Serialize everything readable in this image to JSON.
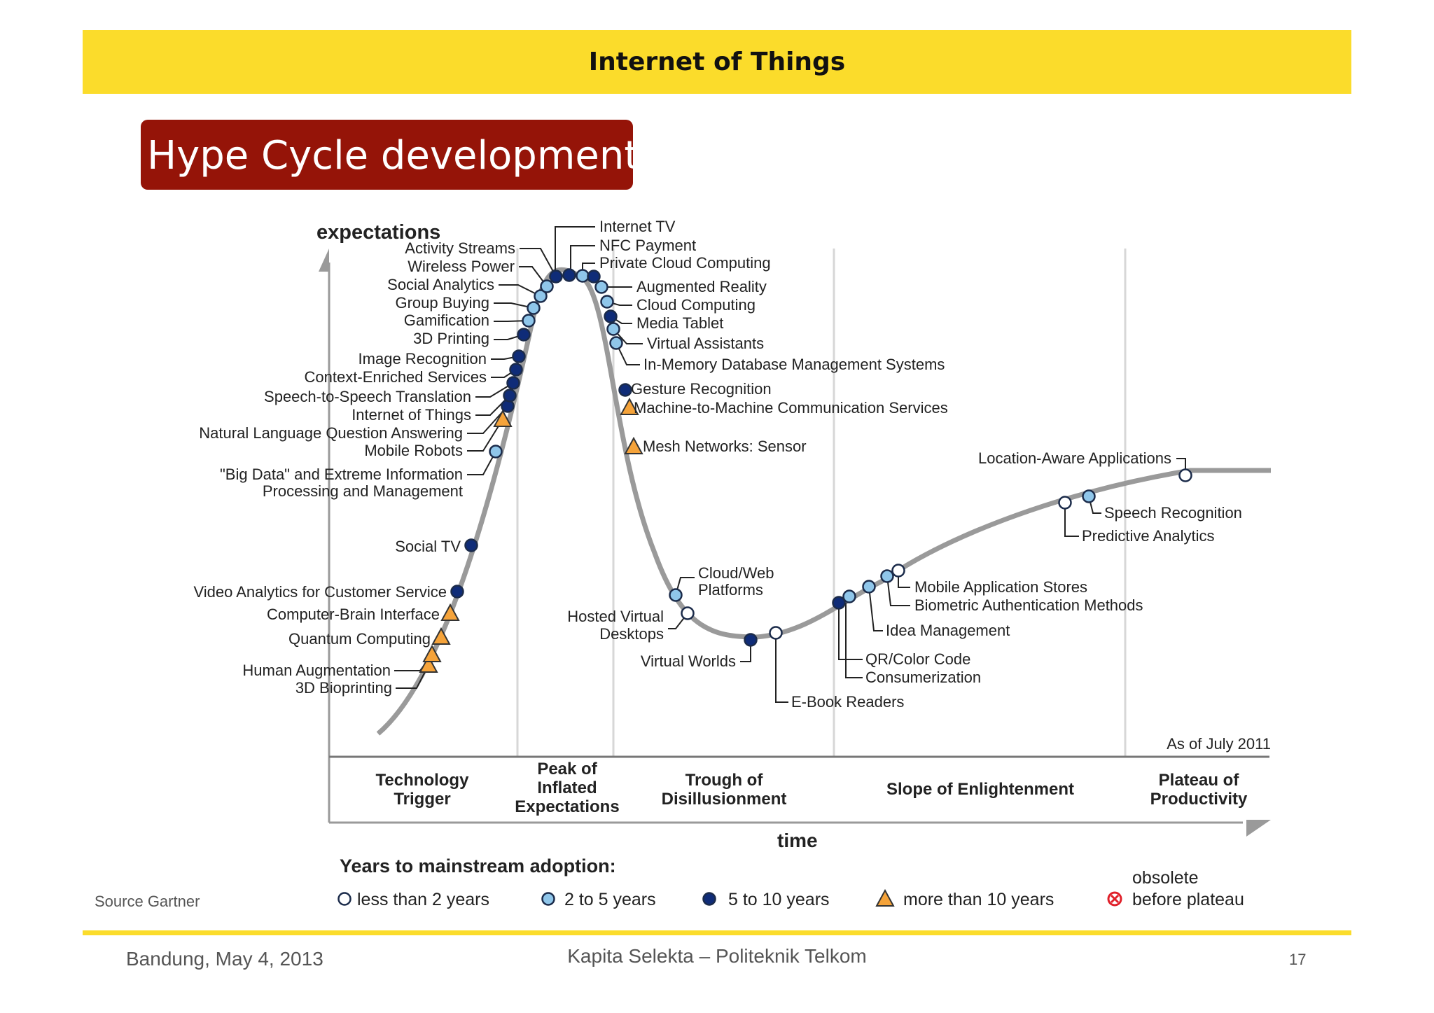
{
  "header": {
    "title": "Internet of Things"
  },
  "subtitle": "Hype Cycle development",
  "source": "Source Gartner",
  "footer": {
    "location_date": "Bandung, May 4, 2013",
    "center": "Kapita Selekta – Politeknik Telkom",
    "page_number": "17"
  },
  "colors": {
    "header_yellow": "#fbdc2b",
    "subtitle_red": "#951408",
    "less_than_2": "#ffffff",
    "two_to_five": "#8fc6ea",
    "five_to_ten": "#0f2c78",
    "more_than_10": "#f5a33a",
    "obsolete": "#e0202a",
    "curve": "#9a9a9a"
  },
  "chart_data": {
    "type": "scatter",
    "ylabel": "expectations",
    "xlabel": "time",
    "as_of": "As of July 2011",
    "phases": [
      "Technology Trigger",
      "Peak of Inflated Expectations",
      "Trough of Disillusionment",
      "Slope of Enlightenment",
      "Plateau of Productivity"
    ],
    "legend_title": "Years to mainstream adoption:",
    "legend": [
      {
        "key": "lt2",
        "label": "less than 2 years",
        "shape": "circle"
      },
      {
        "key": "2to5",
        "label": "2 to 5 years",
        "shape": "circle"
      },
      {
        "key": "5to10",
        "label": "5 to 10 years",
        "shape": "circle"
      },
      {
        "key": "gt10",
        "label": "more than 10 years",
        "shape": "triangle"
      },
      {
        "key": "obsolete",
        "label": "obsolete before plateau",
        "shape": "crossed-circle"
      }
    ],
    "technologies": [
      {
        "name": "3D Bioprinting",
        "phase": "Technology Trigger",
        "category": "gt10"
      },
      {
        "name": "Human Augmentation",
        "phase": "Technology Trigger",
        "category": "gt10"
      },
      {
        "name": "Quantum Computing",
        "phase": "Technology Trigger",
        "category": "gt10"
      },
      {
        "name": "Computer-Brain Interface",
        "phase": "Technology Trigger",
        "category": "gt10"
      },
      {
        "name": "Video Analytics for Customer Service",
        "phase": "Technology Trigger",
        "category": "5to10"
      },
      {
        "name": "Social TV",
        "phase": "Technology Trigger",
        "category": "5to10"
      },
      {
        "name": "\"Big Data\" and Extreme Information Processing and Management",
        "phase": "Technology Trigger",
        "category": "2to5"
      },
      {
        "name": "Mobile Robots",
        "phase": "Technology Trigger",
        "category": "gt10"
      },
      {
        "name": "Natural Language Question Answering",
        "phase": "Technology Trigger",
        "category": "5to10"
      },
      {
        "name": "Internet of Things",
        "phase": "Technology Trigger",
        "category": "5to10"
      },
      {
        "name": "Speech-to-Speech Translation",
        "phase": "Technology Trigger",
        "category": "5to10"
      },
      {
        "name": "Context-Enriched Services",
        "phase": "Technology Trigger",
        "category": "5to10"
      },
      {
        "name": "Image Recognition",
        "phase": "Technology Trigger",
        "category": "5to10"
      },
      {
        "name": "3D Printing",
        "phase": "Technology Trigger",
        "category": "5to10"
      },
      {
        "name": "Gamification",
        "phase": "Technology Trigger",
        "category": "2to5"
      },
      {
        "name": "Group Buying",
        "phase": "Technology Trigger",
        "category": "2to5"
      },
      {
        "name": "Social Analytics",
        "phase": "Technology Trigger",
        "category": "2to5"
      },
      {
        "name": "Wireless Power",
        "phase": "Technology Trigger",
        "category": "2to5"
      },
      {
        "name": "Activity Streams",
        "phase": "Peak of Inflated Expectations",
        "category": "5to10"
      },
      {
        "name": "Internet TV",
        "phase": "Peak of Inflated Expectations",
        "category": "5to10"
      },
      {
        "name": "NFC Payment",
        "phase": "Peak of Inflated Expectations",
        "category": "2to5"
      },
      {
        "name": "Private Cloud Computing",
        "phase": "Peak of Inflated Expectations",
        "category": "5to10"
      },
      {
        "name": "Augmented Reality",
        "phase": "Peak of Inflated Expectations",
        "category": "2to5"
      },
      {
        "name": "Cloud Computing",
        "phase": "Peak of Inflated Expectations",
        "category": "2to5"
      },
      {
        "name": "Media Tablet",
        "phase": "Peak of Inflated Expectations",
        "category": "5to10"
      },
      {
        "name": "Virtual Assistants",
        "phase": "Peak of Inflated Expectations",
        "category": "2to5"
      },
      {
        "name": "In-Memory Database Management Systems",
        "phase": "Trough of Disillusionment",
        "category": "2to5"
      },
      {
        "name": "Gesture Recognition",
        "phase": "Trough of Disillusionment",
        "category": "5to10"
      },
      {
        "name": "Machine-to-Machine Communication Services",
        "phase": "Trough of Disillusionment",
        "category": "gt10"
      },
      {
        "name": "Mesh Networks: Sensor",
        "phase": "Trough of Disillusionment",
        "category": "gt10"
      },
      {
        "name": "Cloud/Web Platforms",
        "phase": "Trough of Disillusionment",
        "category": "2to5"
      },
      {
        "name": "Hosted Virtual Desktops",
        "phase": "Trough of Disillusionment",
        "category": "lt2"
      },
      {
        "name": "Virtual Worlds",
        "phase": "Trough of Disillusionment",
        "category": "5to10"
      },
      {
        "name": "E-Book Readers",
        "phase": "Trough of Disillusionment",
        "category": "lt2"
      },
      {
        "name": "QR/Color Code",
        "phase": "Slope of Enlightenment",
        "category": "5to10"
      },
      {
        "name": "Consumerization",
        "phase": "Slope of Enlightenment",
        "category": "2to5"
      },
      {
        "name": "Idea Management",
        "phase": "Slope of Enlightenment",
        "category": "2to5"
      },
      {
        "name": "Biometric Authentication Methods",
        "phase": "Slope of Enlightenment",
        "category": "2to5"
      },
      {
        "name": "Mobile Application Stores",
        "phase": "Slope of Enlightenment",
        "category": "lt2"
      },
      {
        "name": "Predictive Analytics",
        "phase": "Slope of Enlightenment",
        "category": "lt2"
      },
      {
        "name": "Speech Recognition",
        "phase": "Slope of Enlightenment",
        "category": "2to5"
      },
      {
        "name": "Location-Aware Applications",
        "phase": "Slope of Enlightenment",
        "category": "lt2"
      }
    ]
  }
}
